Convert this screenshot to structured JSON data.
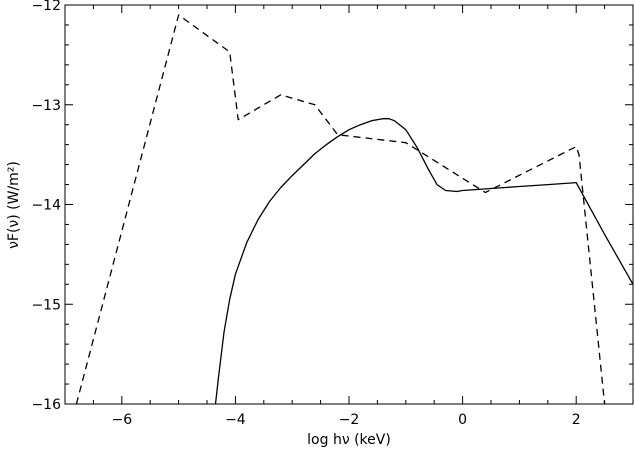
{
  "chart_data": {
    "type": "line",
    "xlabel": "log hν (keV)",
    "ylabel": "νF(ν) (W/m²)",
    "xlim": [
      -7,
      3
    ],
    "ylim": [
      -16,
      -12
    ],
    "x_ticks": [
      -6,
      -4,
      -2,
      0,
      2
    ],
    "y_ticks": [
      -16,
      -15,
      -14,
      -13,
      -12
    ],
    "x_tick_labels": [
      "−6",
      "−4",
      "−2",
      "0",
      "2"
    ],
    "y_tick_labels": [
      "−16",
      "−15",
      "−14",
      "−13",
      "−12"
    ],
    "grid": false,
    "legend": "none",
    "series": [
      {
        "style": "solid",
        "color": "#000000",
        "points": [
          [
            -4.35,
            -16.0
          ],
          [
            -4.3,
            -15.74
          ],
          [
            -4.2,
            -15.28
          ],
          [
            -4.1,
            -14.95
          ],
          [
            -4.0,
            -14.7
          ],
          [
            -3.8,
            -14.38
          ],
          [
            -3.6,
            -14.15
          ],
          [
            -3.4,
            -13.97
          ],
          [
            -3.2,
            -13.83
          ],
          [
            -3.0,
            -13.71
          ],
          [
            -2.8,
            -13.6
          ],
          [
            -2.6,
            -13.49
          ],
          [
            -2.4,
            -13.4
          ],
          [
            -2.2,
            -13.32
          ],
          [
            -2.0,
            -13.25
          ],
          [
            -1.8,
            -13.2
          ],
          [
            -1.6,
            -13.16
          ],
          [
            -1.4,
            -13.14
          ],
          [
            -1.3,
            -13.14
          ],
          [
            -1.2,
            -13.16
          ],
          [
            -1.0,
            -13.25
          ],
          [
            -0.8,
            -13.43
          ],
          [
            -0.6,
            -13.65
          ],
          [
            -0.45,
            -13.8
          ],
          [
            -0.3,
            -13.86
          ],
          [
            -0.1,
            -13.87
          ],
          [
            0.0,
            -13.86
          ],
          [
            0.5,
            -13.84
          ],
          [
            1.0,
            -13.82
          ],
          [
            1.5,
            -13.8
          ],
          [
            2.0,
            -13.78
          ],
          [
            2.5,
            -14.3
          ],
          [
            3.0,
            -14.8
          ]
        ]
      },
      {
        "style": "dashed",
        "color": "#000000",
        "points": [
          [
            -6.8,
            -16.0
          ],
          [
            -5.0,
            -12.1
          ],
          [
            -4.1,
            -12.47
          ],
          [
            -3.95,
            -13.15
          ],
          [
            -3.2,
            -12.9
          ],
          [
            -2.6,
            -13.0
          ],
          [
            -2.2,
            -13.3
          ],
          [
            -1.0,
            -13.38
          ],
          [
            0.4,
            -13.88
          ],
          [
            2.0,
            -13.42
          ],
          [
            2.05,
            -13.5
          ],
          [
            2.5,
            -16.0
          ]
        ]
      }
    ]
  }
}
